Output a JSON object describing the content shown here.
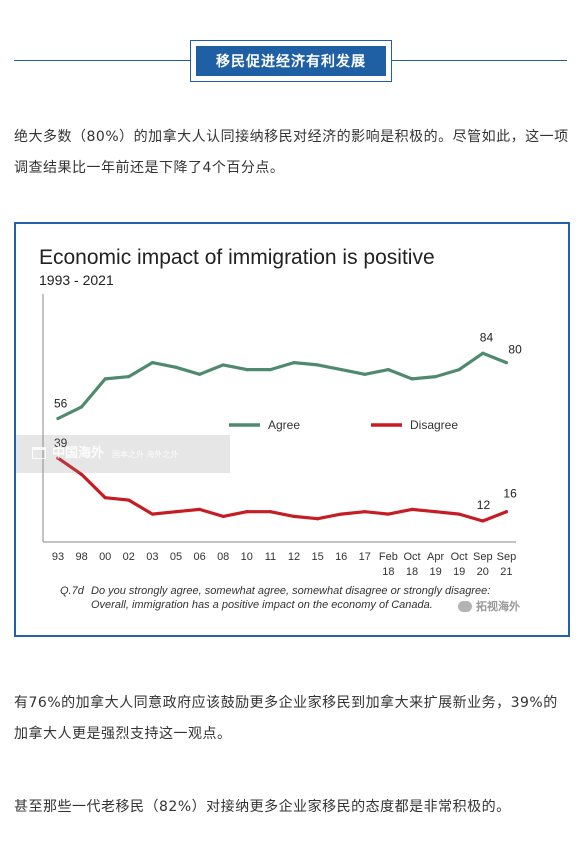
{
  "section": {
    "title": "移民促进经济有利发展"
  },
  "paragraphs": {
    "p1": "绝大多数（80%）的加拿大人认同接纳移民对经济的影响是积极的。尽管如此，这一项调查结果比一年前还是下降了4个百分点。",
    "p2": "有76%的加拿大人同意政府应该鼓励更多企业家移民到加拿大来扩展新业务，39%的加拿大人更是强烈支持这一观点。",
    "p3": "甚至那些一代老移民（82%）对接纳更多企业家移民的态度都是非常积极的。"
  },
  "chart_data": {
    "type": "line",
    "title": "Economic impact of immigration is positive",
    "subtitle": "1993 - 2021",
    "categories": [
      "93",
      "98",
      "00",
      "02",
      "03",
      "05",
      "06",
      "08",
      "10",
      "11",
      "12",
      "15",
      "16",
      "17",
      "Feb 18",
      "Oct 18",
      "Apr 19",
      "Oct 19",
      "Sep 20",
      "Sep 21"
    ],
    "category_lines": [
      [
        "93"
      ],
      [
        "98"
      ],
      [
        "00"
      ],
      [
        "02"
      ],
      [
        "03"
      ],
      [
        "05"
      ],
      [
        "06"
      ],
      [
        "08"
      ],
      [
        "10"
      ],
      [
        "11"
      ],
      [
        "12"
      ],
      [
        "15"
      ],
      [
        "16"
      ],
      [
        "17"
      ],
      [
        "Feb",
        "18"
      ],
      [
        "Oct",
        "18"
      ],
      [
        "Apr",
        "19"
      ],
      [
        "Oct",
        "19"
      ],
      [
        "Sep",
        "20"
      ],
      [
        "Sep",
        "21"
      ]
    ],
    "series": [
      {
        "name": "Agree",
        "color": "#4f8a6e",
        "values": [
          56,
          61,
          73,
          74,
          80,
          78,
          75,
          79,
          77,
          77,
          80,
          79,
          77,
          75,
          77,
          73,
          74,
          77,
          84,
          80
        ]
      },
      {
        "name": "Disagree",
        "color": "#c51d23",
        "values": [
          39,
          32,
          22,
          21,
          15,
          16,
          17,
          14,
          16,
          16,
          14,
          13,
          15,
          16,
          15,
          17,
          16,
          15,
          12,
          16
        ]
      }
    ],
    "labeled_points": [
      {
        "series": 0,
        "index": 0,
        "label": "56"
      },
      {
        "series": 0,
        "index": 18,
        "label": "84"
      },
      {
        "series": 0,
        "index": 19,
        "label": "80"
      },
      {
        "series": 1,
        "index": 0,
        "label": "39"
      },
      {
        "series": 1,
        "index": 18,
        "label": "12"
      },
      {
        "series": 1,
        "index": 19,
        "label": "16"
      }
    ],
    "ylim": [
      0,
      100
    ],
    "grid": false,
    "legend_position": "center",
    "footnote_q": "Q.7d",
    "footnote_line1": "Do you strongly agree, somewhat agree, somewhat disagree or strongly disagree:",
    "footnote_line2": "Overall, immigration has a positive impact on the economy of Canada."
  },
  "watermark": {
    "name": "中国海外",
    "sub": "国本之外  海外之外"
  },
  "logo": {
    "text": "拓视海外"
  }
}
